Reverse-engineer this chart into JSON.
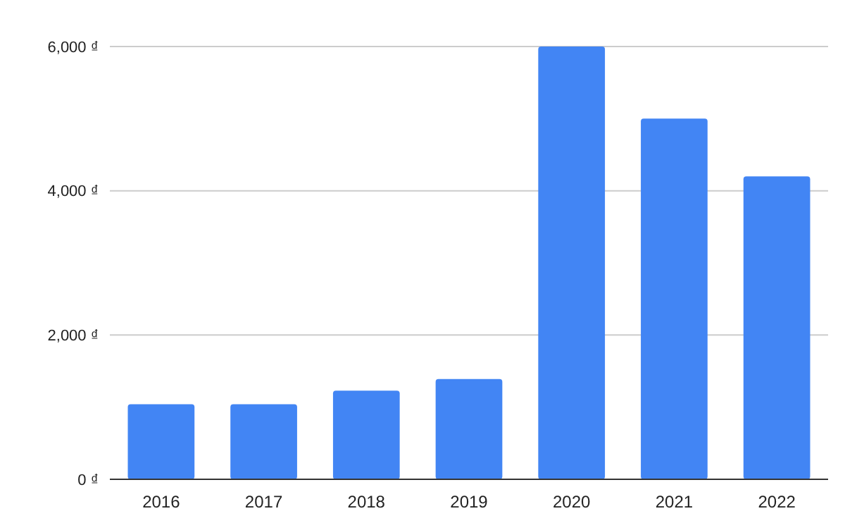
{
  "chart_data": {
    "type": "bar",
    "categories": [
      "2016",
      "2017",
      "2018",
      "2019",
      "2020",
      "2021",
      "2022"
    ],
    "values": [
      1040,
      1040,
      1230,
      1390,
      6000,
      5000,
      4200
    ],
    "color": "#4285f4",
    "ylim": [
      0,
      6000
    ],
    "yticks": [
      {
        "value": 0,
        "label": "0 ₫"
      },
      {
        "value": 2000,
        "label": "2,000 ₫"
      },
      {
        "value": 4000,
        "label": "4,000 ₫"
      },
      {
        "value": 6000,
        "label": "6,000 ₫"
      }
    ],
    "grid": "y"
  }
}
